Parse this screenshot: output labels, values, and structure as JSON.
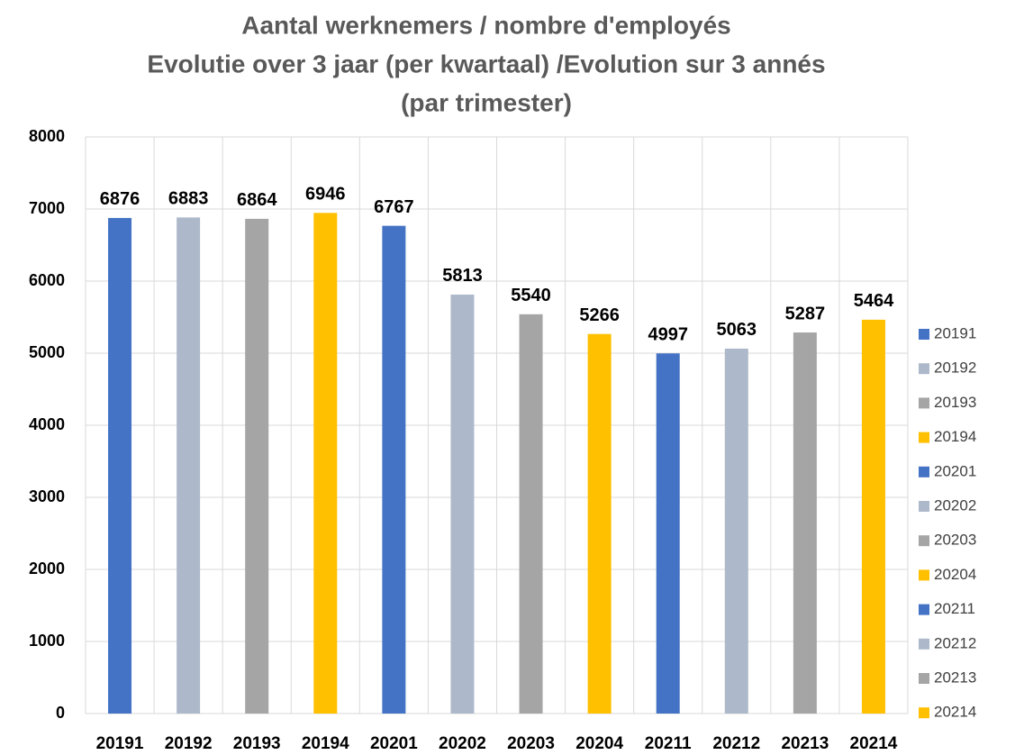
{
  "chart_data": {
    "type": "bar",
    "title": [
      "Aantal werknemers / nombre d'employés",
      "Evolutie over 3 jaar (per kwartaal) /Evolution sur 3 annés",
      "(par trimester)"
    ],
    "categories": [
      "20191",
      "20192",
      "20193",
      "20194",
      "20201",
      "20202",
      "20203",
      "20204",
      "20211",
      "20212",
      "20213",
      "20214"
    ],
    "values": [
      6876,
      6883,
      6864,
      6946,
      6767,
      5813,
      5540,
      5266,
      4997,
      5063,
      5287,
      5464
    ],
    "colors": [
      "#4472c4",
      "#adb9ca",
      "#a5a5a5",
      "#ffc000",
      "#4472c4",
      "#adb9ca",
      "#a5a5a5",
      "#ffc000",
      "#4472c4",
      "#adb9ca",
      "#a5a5a5",
      "#ffc000"
    ],
    "ylim": [
      0,
      8000
    ],
    "yticks": [
      0,
      1000,
      2000,
      3000,
      4000,
      5000,
      6000,
      7000,
      8000
    ],
    "grid": true,
    "legend": "right"
  }
}
